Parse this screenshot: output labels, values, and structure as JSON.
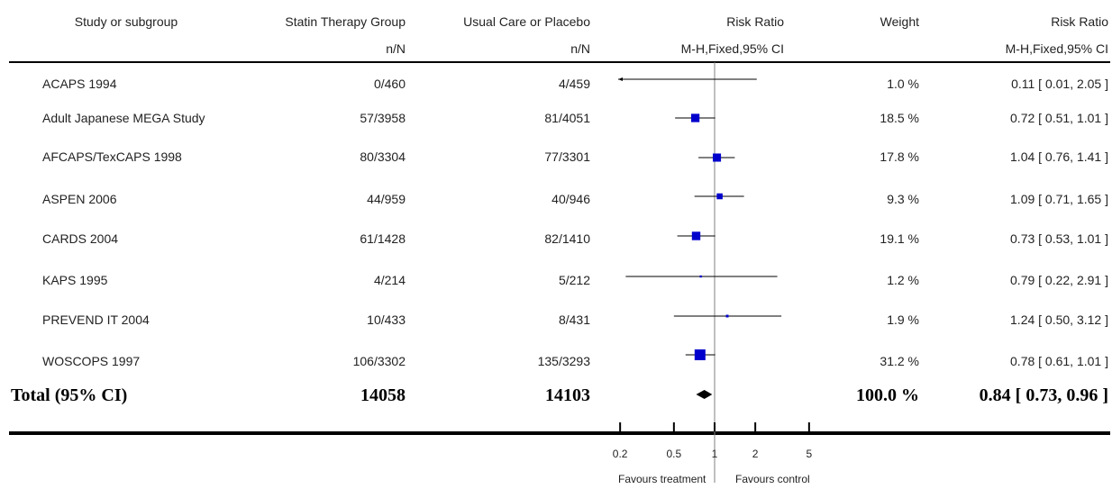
{
  "headers": {
    "study": "Study or subgroup",
    "treatment": "Statin Therapy Group",
    "treatment_sub": "n/N",
    "control": "Usual Care or Placebo",
    "control_sub": "n/N",
    "plot": "Risk Ratio",
    "plot_sub": "M-H,Fixed,95% CI",
    "weight": "Weight",
    "rr": "Risk Ratio",
    "rr_sub": "M-H,Fixed,95% CI"
  },
  "rows": [
    {
      "study": "ACAPS 1994",
      "treatment": "0/460",
      "control": "4/459",
      "weight": "1.0 %",
      "ci_text": "0.11 [ 0.01, 2.05 ]"
    },
    {
      "study": "Adult Japanese MEGA Study",
      "treatment": "57/3958",
      "control": "81/4051",
      "weight": "18.5 %",
      "ci_text": "0.72 [ 0.51, 1.01 ]"
    },
    {
      "study": "AFCAPS/TexCAPS 1998",
      "treatment": "80/3304",
      "control": "77/3301",
      "weight": "17.8 %",
      "ci_text": "1.04 [ 0.76, 1.41 ]"
    },
    {
      "study": "ASPEN 2006",
      "treatment": "44/959",
      "control": "40/946",
      "weight": "9.3 %",
      "ci_text": "1.09 [ 0.71, 1.65 ]"
    },
    {
      "study": "CARDS 2004",
      "treatment": "61/1428",
      "control": "82/1410",
      "weight": "19.1 %",
      "ci_text": "0.73 [ 0.53, 1.01 ]"
    },
    {
      "study": "KAPS 1995",
      "treatment": "4/214",
      "control": "5/212",
      "weight": "1.2 %",
      "ci_text": "0.79 [ 0.22, 2.91 ]"
    },
    {
      "study": "PREVEND IT 2004",
      "treatment": "10/433",
      "control": "8/431",
      "weight": "1.9 %",
      "ci_text": "1.24 [ 0.50, 3.12 ]"
    },
    {
      "study": "WOSCOPS 1997",
      "treatment": "106/3302",
      "control": "135/3293",
      "weight": "31.2 %",
      "ci_text": "0.78 [ 0.61, 1.01 ]"
    }
  ],
  "total": {
    "label": "Total (95% CI)",
    "treatment": "14058",
    "control": "14103",
    "weight": "100.0 %",
    "ci_text": "0.84 [ 0.73, 0.96 ]"
  },
  "axis": {
    "ticks": [
      "0.2",
      "0.5",
      "1",
      "2",
      "5"
    ],
    "favours_left": "Favours treatment",
    "favours_right": "Favours control"
  },
  "colors": {
    "marker": "#0000cc",
    "line": "#000000",
    "divider": "#808080"
  },
  "chart_data": {
    "type": "forest",
    "scale": "log",
    "xlim": [
      0.1,
      10
    ],
    "x_ticks": [
      0.2,
      0.5,
      1,
      2,
      5
    ],
    "studies": [
      {
        "name": "ACAPS 1994",
        "rr": 0.11,
        "lo": 0.01,
        "hi": 2.05,
        "weight": 1.0
      },
      {
        "name": "Adult Japanese MEGA Study",
        "rr": 0.72,
        "lo": 0.51,
        "hi": 1.01,
        "weight": 18.5
      },
      {
        "name": "AFCAPS/TexCAPS 1998",
        "rr": 1.04,
        "lo": 0.76,
        "hi": 1.41,
        "weight": 17.8
      },
      {
        "name": "ASPEN 2006",
        "rr": 1.09,
        "lo": 0.71,
        "hi": 1.65,
        "weight": 9.3
      },
      {
        "name": "CARDS 2004",
        "rr": 0.73,
        "lo": 0.53,
        "hi": 1.01,
        "weight": 19.1
      },
      {
        "name": "KAPS 1995",
        "rr": 0.79,
        "lo": 0.22,
        "hi": 2.91,
        "weight": 1.2
      },
      {
        "name": "PREVEND IT 2004",
        "rr": 1.24,
        "lo": 0.5,
        "hi": 3.12,
        "weight": 1.9
      },
      {
        "name": "WOSCOPS 1997",
        "rr": 0.78,
        "lo": 0.61,
        "hi": 1.01,
        "weight": 31.2
      }
    ],
    "total": {
      "rr": 0.84,
      "lo": 0.73,
      "hi": 0.96,
      "weight": 100.0
    }
  }
}
